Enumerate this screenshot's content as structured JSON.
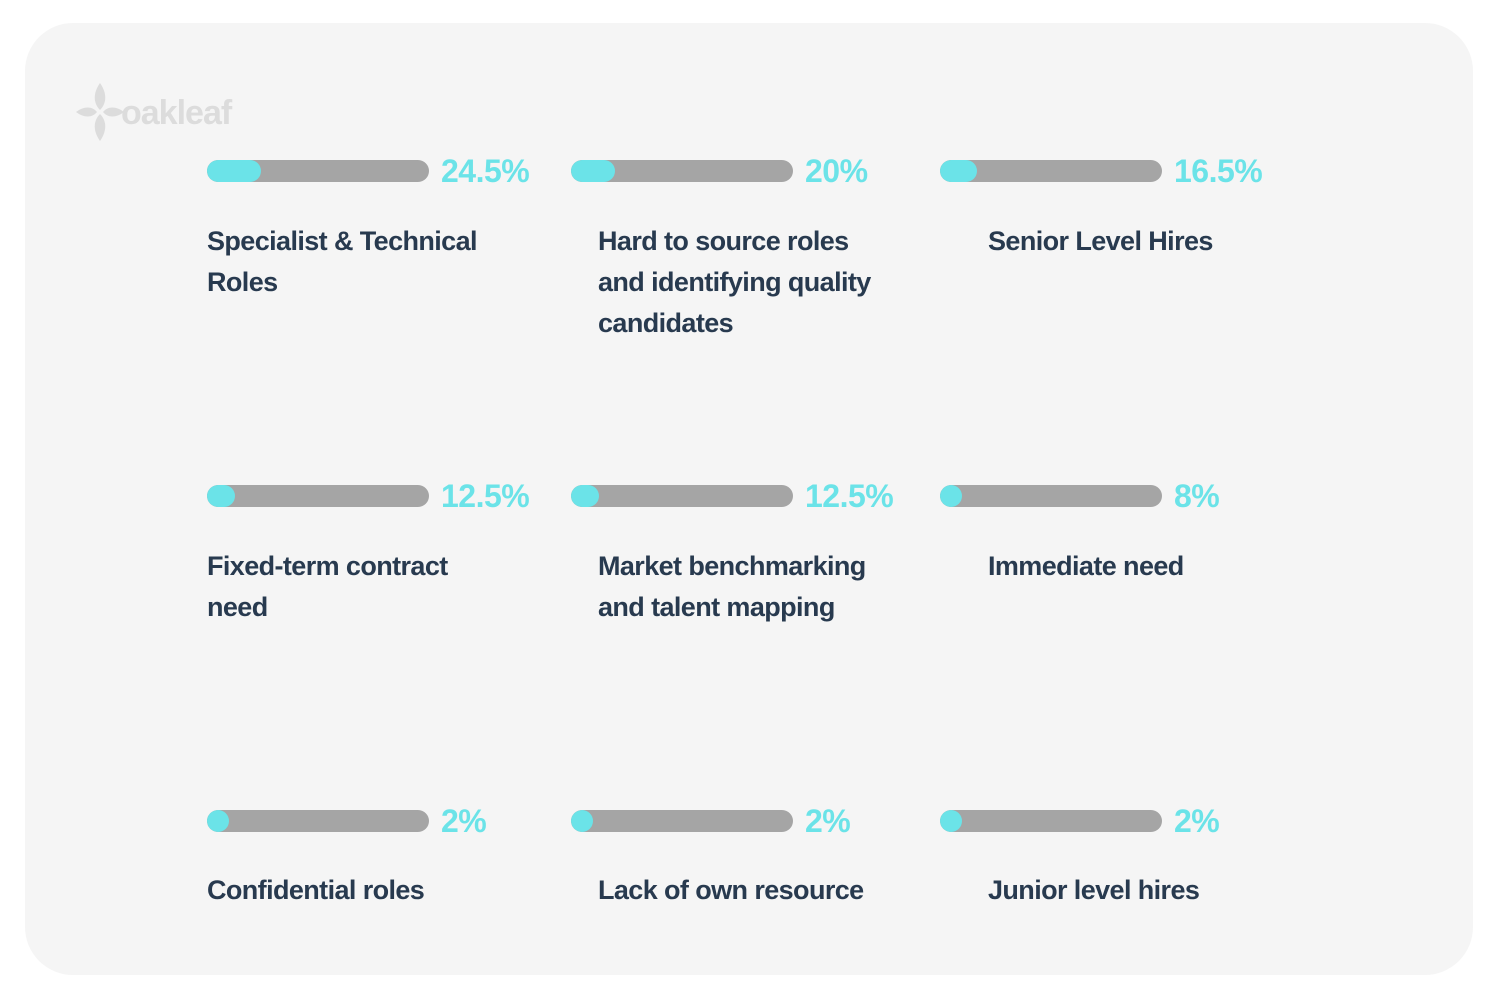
{
  "brand": {
    "logo_icon": "four-petal-leaf-icon",
    "logo_text": "oakleaf",
    "logo_color": "#dcdcdc"
  },
  "colors": {
    "fill": "#6be3e8",
    "track": "#a5a5a5",
    "label": "#283a4f",
    "card": "#f5f5f5"
  },
  "chart_data": {
    "type": "bar",
    "orientation": "horizontal-progress",
    "categories": [
      "Specialist & Technical Roles",
      "Hard to source roles and identifying quality candidates",
      "Senior Level Hires",
      "Fixed-term contract need",
      "Market benchmarking and talent mapping",
      "Immediate need",
      "Confidential roles",
      "Lack of own resource",
      "Junior level hires"
    ],
    "values": [
      24.5,
      20,
      16.5,
      12.5,
      12.5,
      8,
      2,
      2,
      2
    ],
    "value_labels": [
      "24.5%",
      "20%",
      "16.5%",
      "12.5%",
      "12.5%",
      "8%",
      "2%",
      "2%",
      "2%"
    ],
    "unit": "%",
    "ylim": [
      0,
      100
    ],
    "grid": false,
    "legend": "none"
  }
}
